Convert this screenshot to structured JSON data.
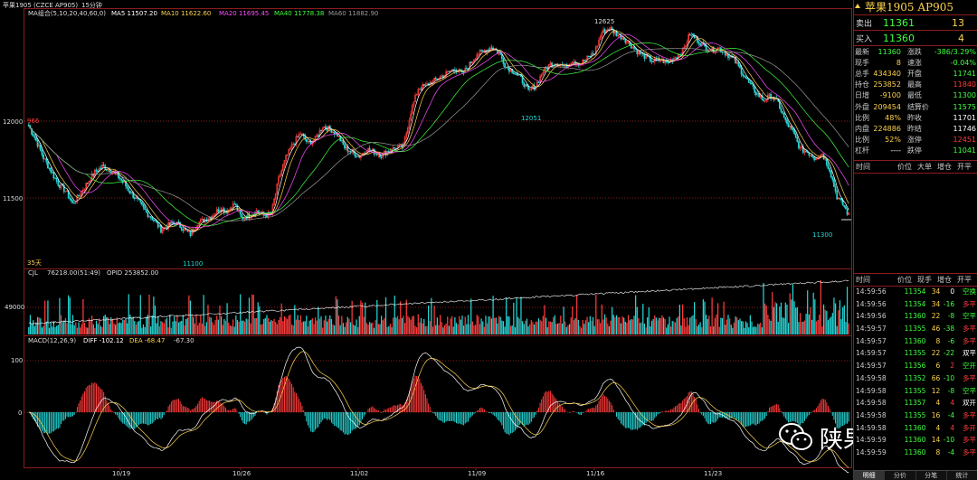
{
  "chart_header": {
    "title": "苹果1905 (CZCE AP905)",
    "period": "15分钟",
    "ma_label": "MA组合(5,10,20,40,60,0)",
    "ma5": "MA5 11507.20",
    "ma10": "MA10 11622.60",
    "ma20": "MA20 11695.45",
    "ma40": "MA40 11778.38",
    "ma60": "MA60 11882.90"
  },
  "price_axis": {
    "labels": [
      "12000",
      "11500"
    ]
  },
  "annotations": {
    "high_label": "12625",
    "mid_low_label": "12051",
    "low_label": "11100",
    "last_low_label": "11300",
    "left_label": "966",
    "days_label": "35天"
  },
  "volume_header": {
    "cjl": "CJL",
    "cjl_value": "76218.00(51:49)",
    "opid": "OPID 253852.00"
  },
  "volume_axis": {
    "label": "49000"
  },
  "macd_header": {
    "label": "MACD(12,26,9)",
    "diff": "DIFF -102.12",
    "dea": "DEA -68.47",
    "macd": "-67.30"
  },
  "macd_axis": {
    "top": "100",
    "zero": "0"
  },
  "date_axis": [
    "10/19",
    "10/26",
    "11/02",
    "11/09",
    "11/16",
    "11/23"
  ],
  "colors": {
    "up": "#ff3c3c",
    "down": "#25d8d8",
    "ma5": "#ffffff",
    "ma10": "#ffd24d",
    "ma20": "#ff4dff",
    "ma40": "#3fff3f",
    "ma60": "#9a9a9a",
    "grid": "#8a1c1c"
  },
  "panel": {
    "title": "苹果1905  AP905",
    "sell": {
      "label": "卖出",
      "price": "11361",
      "vol": "13"
    },
    "buy": {
      "label": "买入",
      "price": "11360",
      "vol": "4"
    },
    "stats": [
      {
        "l1": "最新",
        "v1": "11360",
        "c1": "vg",
        "l2": "涨跌",
        "v2": "-386/3.29%",
        "c2": "vg"
      },
      {
        "l1": "现手",
        "v1": "8",
        "c1": "vy",
        "l2": "速涨",
        "v2": "-0.04%",
        "c2": "vg"
      },
      {
        "l1": "总手",
        "v1": "434340",
        "c1": "vy",
        "l2": "开盘",
        "v2": "11741",
        "c2": "vg"
      },
      {
        "l1": "持仓",
        "v1": "253852",
        "c1": "vy",
        "l2": "最高",
        "v2": "11840",
        "c2": "vr"
      },
      {
        "l1": "日增",
        "v1": "-9100",
        "c1": "vy",
        "l2": "最低",
        "v2": "11300",
        "c2": "vg"
      },
      {
        "l1": "外盘",
        "v1": "209454",
        "c1": "vy",
        "l2": "结算价",
        "v2": "11575",
        "c2": "vg"
      },
      {
        "l1": "比例",
        "v1": "48%",
        "c1": "vy",
        "l2": "昨收",
        "v2": "11701",
        "c2": "vw"
      },
      {
        "l1": "内盘",
        "v1": "224886",
        "c1": "vy",
        "l2": "昨结",
        "v2": "11746",
        "c2": "vw"
      },
      {
        "l1": "比例",
        "v1": "52%",
        "c1": "vy",
        "l2": "涨停",
        "v2": "12451",
        "c2": "vr"
      },
      {
        "l1": "杠杆",
        "v1": "----",
        "c1": "vw",
        "l2": "跌停",
        "v2": "11041",
        "c2": "vg"
      }
    ],
    "hdr1": [
      "时间",
      "价位",
      "大单",
      "增仓",
      "开平"
    ],
    "hdr2": [
      "时间",
      "价位",
      "现手",
      "增仓",
      "开平"
    ],
    "ticks": [
      {
        "t": "14:59:56",
        "p": "11354",
        "v": "34",
        "d": "0",
        "dc": "#fff",
        "n": "空换",
        "nc": "#3fff3f"
      },
      {
        "t": "14:59:56",
        "p": "11354",
        "v": "34",
        "d": "-16",
        "dc": "#3fff3f",
        "n": "多平",
        "nc": "#ff3c3c"
      },
      {
        "t": "14:59:56",
        "p": "11360",
        "v": "22",
        "d": "-8",
        "dc": "#3fff3f",
        "n": "空平",
        "nc": "#3fff3f"
      },
      {
        "t": "14:59:57",
        "p": "11355",
        "v": "46",
        "d": "-38",
        "dc": "#3fff3f",
        "n": "多平",
        "nc": "#ff3c3c"
      },
      {
        "t": "14:59:57",
        "p": "11360",
        "v": "8",
        "d": "-6",
        "dc": "#3fff3f",
        "n": "多平",
        "nc": "#ff3c3c"
      },
      {
        "t": "14:59:57",
        "p": "11355",
        "v": "22",
        "d": "-22",
        "dc": "#3fff3f",
        "n": "双平",
        "nc": "#fff"
      },
      {
        "t": "14:59:57",
        "p": "11356",
        "v": "6",
        "d": "2",
        "dc": "#ff3c3c",
        "n": "空开",
        "nc": "#3fff3f"
      },
      {
        "t": "14:59:58",
        "p": "11352",
        "v": "66",
        "d": "-10",
        "dc": "#3fff3f",
        "n": "多平",
        "nc": "#ff3c3c"
      },
      {
        "t": "14:59:58",
        "p": "11355",
        "v": "12",
        "d": "-8",
        "dc": "#3fff3f",
        "n": "空平",
        "nc": "#3fff3f"
      },
      {
        "t": "14:59:58",
        "p": "11357",
        "v": "4",
        "d": "4",
        "dc": "#ff3c3c",
        "n": "双开",
        "nc": "#fff"
      },
      {
        "t": "14:59:58",
        "p": "11355",
        "v": "16",
        "d": "-4",
        "dc": "#3fff3f",
        "n": "多平",
        "nc": "#ff3c3c"
      },
      {
        "t": "14:59:58",
        "p": "11360",
        "v": "4",
        "d": "4",
        "dc": "#ff3c3c",
        "n": "多开",
        "nc": "#ff3c3c"
      },
      {
        "t": "14:59:59",
        "p": "11360",
        "v": "14",
        "d": "-10",
        "dc": "#3fff3f",
        "n": "多平",
        "nc": "#ff3c3c"
      },
      {
        "t": "14:59:59",
        "p": "11360",
        "v": "8",
        "d": "-4",
        "dc": "#3fff3f",
        "n": "多平",
        "nc": "#ff3c3c"
      }
    ],
    "tabs": [
      "明细",
      "分价",
      "分笔",
      "统计"
    ]
  },
  "watermark": "陕果大数据",
  "chart_data": {
    "type": "candlestick",
    "xlabel": "",
    "ylabel": "",
    "ylim": [
      10950,
      12720
    ],
    "anchors": [
      [
        0,
        11920
      ],
      [
        5,
        11820
      ],
      [
        10,
        11700
      ],
      [
        15,
        11610
      ],
      [
        20,
        11520
      ],
      [
        25,
        11470
      ],
      [
        30,
        11380
      ],
      [
        35,
        11450
      ],
      [
        40,
        11530
      ],
      [
        45,
        11600
      ],
      [
        50,
        11640
      ],
      [
        55,
        11620
      ],
      [
        60,
        11580
      ],
      [
        65,
        11520
      ],
      [
        70,
        11450
      ],
      [
        75,
        11390
      ],
      [
        80,
        11320
      ],
      [
        85,
        11270
      ],
      [
        90,
        11200
      ],
      [
        95,
        11230
      ],
      [
        100,
        11250
      ],
      [
        105,
        11210
      ],
      [
        110,
        11170
      ],
      [
        115,
        11250
      ],
      [
        120,
        11270
      ],
      [
        125,
        11300
      ],
      [
        130,
        11350
      ],
      [
        135,
        11330
      ],
      [
        140,
        11380
      ],
      [
        145,
        11280
      ],
      [
        150,
        11300
      ],
      [
        155,
        11330
      ],
      [
        160,
        11300
      ],
      [
        165,
        11310
      ],
      [
        170,
        11550
      ],
      [
        175,
        11700
      ],
      [
        180,
        11800
      ],
      [
        185,
        11870
      ],
      [
        190,
        11800
      ],
      [
        195,
        11830
      ],
      [
        200,
        11920
      ],
      [
        205,
        11900
      ],
      [
        210,
        11860
      ],
      [
        215,
        11770
      ],
      [
        220,
        11740
      ],
      [
        225,
        11710
      ],
      [
        230,
        11760
      ],
      [
        235,
        11740
      ],
      [
        240,
        11720
      ],
      [
        245,
        11750
      ],
      [
        250,
        11770
      ],
      [
        255,
        11780
      ],
      [
        260,
        12020
      ],
      [
        265,
        12180
      ],
      [
        270,
        12200
      ],
      [
        275,
        12230
      ],
      [
        280,
        12260
      ],
      [
        285,
        12290
      ],
      [
        290,
        12320
      ],
      [
        295,
        12280
      ],
      [
        300,
        12350
      ],
      [
        305,
        12420
      ],
      [
        310,
        12440
      ],
      [
        315,
        12470
      ],
      [
        320,
        12430
      ],
      [
        325,
        12330
      ],
      [
        330,
        12300
      ],
      [
        335,
        12250
      ],
      [
        340,
        12160
      ],
      [
        345,
        12200
      ],
      [
        350,
        12300
      ],
      [
        355,
        12350
      ],
      [
        360,
        12360
      ],
      [
        365,
        12330
      ],
      [
        370,
        12380
      ],
      [
        375,
        12350
      ],
      [
        380,
        12390
      ],
      [
        385,
        12430
      ],
      [
        390,
        12570
      ],
      [
        395,
        12600
      ],
      [
        400,
        12560
      ],
      [
        405,
        12530
      ],
      [
        410,
        12480
      ],
      [
        415,
        12430
      ],
      [
        420,
        12400
      ],
      [
        425,
        12370
      ],
      [
        430,
        12380
      ],
      [
        435,
        12360
      ],
      [
        440,
        12400
      ],
      [
        445,
        12440
      ],
      [
        450,
        12560
      ],
      [
        455,
        12520
      ],
      [
        460,
        12470
      ],
      [
        465,
        12450
      ],
      [
        470,
        12460
      ],
      [
        475,
        12420
      ],
      [
        480,
        12380
      ],
      [
        485,
        12300
      ],
      [
        490,
        12220
      ],
      [
        495,
        12150
      ],
      [
        500,
        12100
      ],
      [
        505,
        12130
      ],
      [
        510,
        12080
      ],
      [
        515,
        11950
      ],
      [
        520,
        11880
      ],
      [
        525,
        11760
      ],
      [
        530,
        11740
      ],
      [
        535,
        11700
      ],
      [
        540,
        11730
      ],
      [
        545,
        11620
      ],
      [
        550,
        11430
      ],
      [
        555,
        11360
      ],
      [
        558,
        11300
      ]
    ]
  }
}
